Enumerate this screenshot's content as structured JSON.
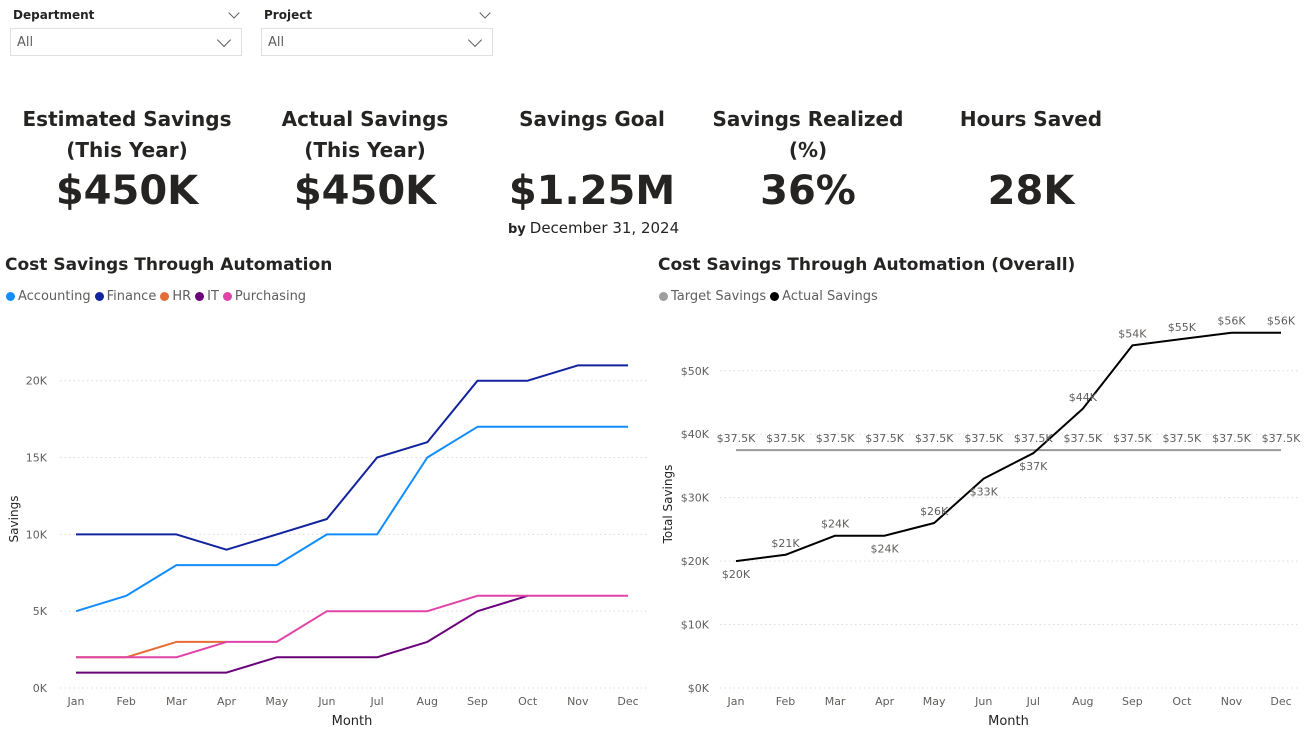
{
  "filters": [
    {
      "label": "Department",
      "value": "All"
    },
    {
      "label": "Project",
      "value": "All"
    }
  ],
  "kpis": [
    {
      "label_lines": [
        "Estimated Savings",
        "(This Year)"
      ],
      "value": "$450K"
    },
    {
      "label_lines": [
        "Actual Savings",
        "(This Year)"
      ],
      "value": "$450K"
    },
    {
      "label_lines": [
        "Savings Goal"
      ],
      "value": "$1.25M",
      "note_by": "by",
      "note_date": "December 31, 2024"
    },
    {
      "label_lines": [
        "Savings Realized",
        "(%)"
      ],
      "value": "36%"
    },
    {
      "label_lines": [
        "Hours Saved"
      ],
      "value": "28K"
    }
  ],
  "chart_data": [
    {
      "type": "line",
      "title": "Cost Savings Through Automation",
      "xlabel": "Month",
      "ylabel": "Savings",
      "categories": [
        "Jan",
        "Feb",
        "Mar",
        "Apr",
        "May",
        "Jun",
        "Jul",
        "Aug",
        "Sep",
        "Oct",
        "Nov",
        "Dec"
      ],
      "ylim": [
        0,
        22000
      ],
      "yticks": [
        0,
        5000,
        10000,
        15000,
        20000
      ],
      "ytick_labels": [
        "0K",
        "5K",
        "10K",
        "15K",
        "20K"
      ],
      "grid": true,
      "legend_position": "top-left",
      "series": [
        {
          "name": "Accounting",
          "color": "#118dff",
          "values": [
            5000,
            6000,
            8000,
            8000,
            8000,
            10000,
            10000,
            15000,
            17000,
            17000,
            17000,
            17000
          ]
        },
        {
          "name": "Finance",
          "color": "#12239e",
          "values": [
            10000,
            10000,
            10000,
            9000,
            10000,
            11000,
            15000,
            16000,
            20000,
            20000,
            21000,
            21000
          ]
        },
        {
          "name": "HR",
          "color": "#e66c37",
          "values": [
            2000,
            2000,
            3000,
            3000,
            null,
            null,
            null,
            null,
            null,
            null,
            null,
            null
          ]
        },
        {
          "name": "IT",
          "color": "#6b007b",
          "values": [
            1000,
            1000,
            1000,
            1000,
            2000,
            2000,
            2000,
            3000,
            5000,
            6000,
            null,
            null
          ]
        },
        {
          "name": "Purchasing",
          "color": "#e044a7",
          "values": [
            2000,
            2000,
            2000,
            3000,
            3000,
            5000,
            5000,
            5000,
            6000,
            6000,
            6000,
            6000
          ]
        }
      ]
    },
    {
      "type": "line",
      "title": "Cost Savings Through Automation (Overall)",
      "xlabel": "Month",
      "ylabel": "Total Savings",
      "categories": [
        "Jan",
        "Feb",
        "Mar",
        "Apr",
        "May",
        "Jun",
        "Jul",
        "Aug",
        "Sep",
        "Oct",
        "Nov",
        "Dec"
      ],
      "ylim": [
        0,
        58000
      ],
      "yticks": [
        0,
        10000,
        20000,
        30000,
        40000,
        50000
      ],
      "ytick_labels": [
        "$0K",
        "$10K",
        "$20K",
        "$30K",
        "$40K",
        "$50K"
      ],
      "grid": true,
      "legend_position": "top-left",
      "series": [
        {
          "name": "Target Savings",
          "color": "#999999",
          "legend_color": "#9e9e9e",
          "values": [
            37500,
            37500,
            37500,
            37500,
            37500,
            37500,
            37500,
            37500,
            37500,
            37500,
            37500,
            37500
          ],
          "labels": [
            "$37.5K",
            "$37.5K",
            "$37.5K",
            "$37.5K",
            "$37.5K",
            "$37.5K",
            "$37.5K",
            "$37.5K",
            "$37.5K",
            "$37.5K",
            "$37.5K",
            "$37.5K"
          ]
        },
        {
          "name": "Actual Savings",
          "color": "#000000",
          "values": [
            20000,
            21000,
            24000,
            24000,
            26000,
            33000,
            37000,
            44000,
            54000,
            55000,
            56000,
            56000
          ],
          "labels": [
            "$20K",
            "$21K",
            "$24K",
            "$24K",
            "$26K",
            "$33K",
            "$37K",
            "$44K",
            "$54K",
            "$55K",
            "$56K",
            "$56K"
          ]
        }
      ]
    }
  ]
}
